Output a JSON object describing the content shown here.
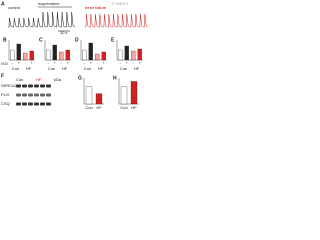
{
  "panel_a": {
    "label": "A",
    "left_title": "control",
    "stimulus": "isoprenaline",
    "right_title": "heart failure",
    "scale": "10 s"
  },
  "watermark": "© WILEY",
  "bar_panels": [
    {
      "label": "B",
      "values": [
        1.0,
        1.6,
        0.7,
        0.9
      ],
      "colors": [
        "#ffffff",
        "#222222",
        "#f4a6a6",
        "#d62020"
      ],
      "ylim": [
        0,
        2
      ]
    },
    {
      "label": "C",
      "values": [
        1.0,
        1.5,
        0.8,
        1.0
      ],
      "colors": [
        "#ffffff",
        "#222222",
        "#f4a6a6",
        "#d62020"
      ],
      "ylim": [
        0,
        2
      ]
    },
    {
      "label": "D",
      "values": [
        1.0,
        1.7,
        0.6,
        0.8
      ],
      "colors": [
        "#ffffff",
        "#222222",
        "#f4a6a6",
        "#d62020"
      ],
      "ylim": [
        0,
        2
      ]
    },
    {
      "label": "E",
      "values": [
        1.0,
        1.4,
        0.9,
        1.1
      ],
      "colors": [
        "#ffffff",
        "#222222",
        "#f4a6a6",
        "#d62020"
      ],
      "ylim": [
        0,
        2
      ]
    }
  ],
  "row_label": "ISO",
  "x_labels": [
    "-",
    "+",
    "-",
    "+"
  ],
  "groups": [
    "Con",
    "HF"
  ],
  "blot": {
    "label": "F",
    "header": "kDa",
    "rows": [
      "SERCA2a",
      "PLN",
      "CSQ"
    ],
    "groups": [
      "Con",
      "HF"
    ]
  },
  "lower_panels": [
    {
      "label": "G",
      "values": [
        1.0,
        0.6
      ],
      "colors": [
        "#ffffff",
        "#d62020"
      ],
      "ylim": [
        0,
        1.5
      ],
      "groups": [
        "Con",
        "HF"
      ]
    },
    {
      "label": "H",
      "values": [
        1.0,
        1.3
      ],
      "colors": [
        "#ffffff",
        "#d62020"
      ],
      "ylim": [
        0,
        1.5
      ],
      "groups": [
        "Con",
        "HF"
      ]
    }
  ]
}
